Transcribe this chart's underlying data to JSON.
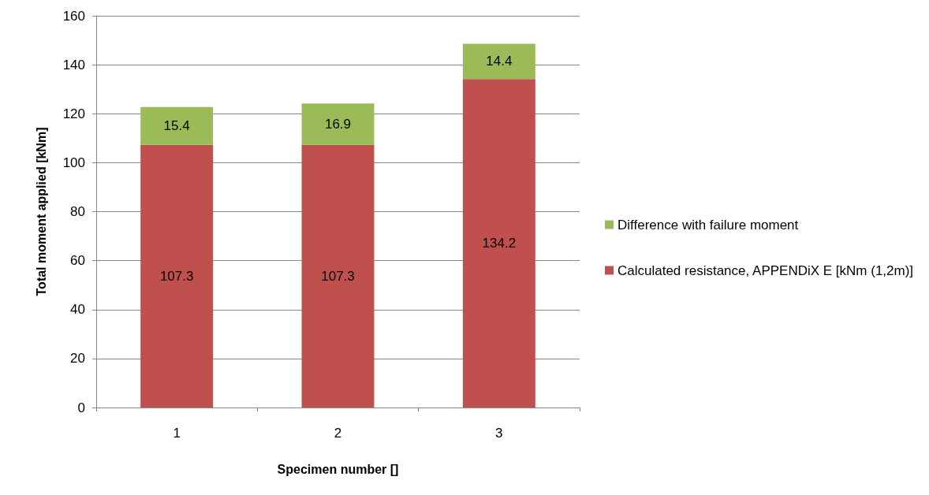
{
  "chart_data": {
    "type": "bar",
    "stacked": true,
    "xlabel": "Specimen number []",
    "ylabel": "Total moment applied [kNm]",
    "categories": [
      "1",
      "2",
      "3"
    ],
    "series": [
      {
        "name": "Calculated resistance, APPENDiX E [kNm (1,2m)]",
        "color": "#c0504d",
        "values": [
          107.3,
          107.3,
          134.2
        ]
      },
      {
        "name": "Difference with failure moment",
        "color": "#9bbb59",
        "values": [
          15.4,
          16.9,
          14.4
        ]
      }
    ],
    "ylim": [
      0,
      160
    ],
    "yticks": [
      0,
      20,
      40,
      60,
      80,
      100,
      120,
      140,
      160
    ],
    "grid": "y",
    "legend": "right",
    "data_labels": true
  }
}
